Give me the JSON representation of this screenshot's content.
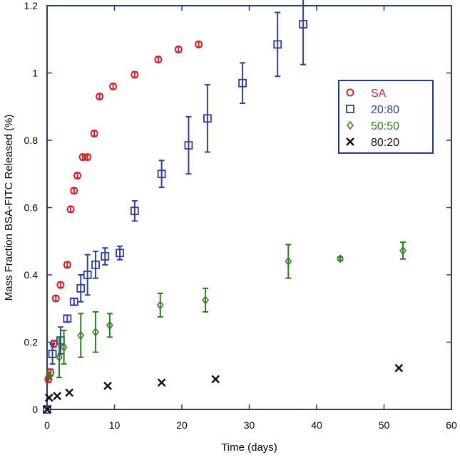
{
  "chart_data": {
    "type": "scatter",
    "title": "",
    "xlabel": "Time (days)",
    "ylabel": "Mass Fraction BSA-FITC Released (%)",
    "xlim": [
      0,
      60
    ],
    "ylim": [
      0,
      1.2
    ],
    "xticks": [
      0,
      10,
      20,
      30,
      40,
      50,
      60
    ],
    "xtick_labels": [
      "0",
      "10",
      "20",
      "30",
      "40",
      "50",
      "60"
    ],
    "yticks": [
      0,
      0.2,
      0.4,
      0.6,
      0.8,
      1.0,
      1.2
    ],
    "ytick_labels": [
      "0",
      "0.2",
      "0.4",
      "0.6",
      "0.8",
      "1",
      "1.2"
    ],
    "grid": false,
    "legend_position": "upper-right",
    "axis_color": "#1f3c88",
    "series": [
      {
        "name": "SA",
        "marker": "circle",
        "color": "#d8202a",
        "points": [
          {
            "x": 0.2,
            "y": 0.09,
            "err": 0.01
          },
          {
            "x": 0.5,
            "y": 0.11,
            "err": 0.01
          },
          {
            "x": 1.0,
            "y": 0.195,
            "err": 0.01
          },
          {
            "x": 1.3,
            "y": 0.33,
            "err": 0.008
          },
          {
            "x": 2.0,
            "y": 0.37,
            "err": 0.008
          },
          {
            "x": 3.0,
            "y": 0.43,
            "err": 0.008
          },
          {
            "x": 3.5,
            "y": 0.595,
            "err": 0.008
          },
          {
            "x": 4.0,
            "y": 0.65,
            "err": 0.008
          },
          {
            "x": 4.5,
            "y": 0.695,
            "err": 0.008
          },
          {
            "x": 5.3,
            "y": 0.75,
            "err": 0.008
          },
          {
            "x": 6.0,
            "y": 0.75,
            "err": 0.008
          },
          {
            "x": 7.0,
            "y": 0.82,
            "err": 0.008
          },
          {
            "x": 7.8,
            "y": 0.93,
            "err": 0.008
          },
          {
            "x": 9.8,
            "y": 0.96,
            "err": 0.008
          },
          {
            "x": 13.0,
            "y": 0.995,
            "err": 0.008
          },
          {
            "x": 16.5,
            "y": 1.04,
            "err": 0.008
          },
          {
            "x": 19.5,
            "y": 1.07,
            "err": 0.008
          },
          {
            "x": 22.5,
            "y": 1.085,
            "err": 0.008
          }
        ]
      },
      {
        "name": "20:80",
        "marker": "square",
        "color": "#2f3f9e",
        "points": [
          {
            "x": 0.0,
            "y": 0.0,
            "err": 0.0
          },
          {
            "x": 0.8,
            "y": 0.165,
            "err": 0.03
          },
          {
            "x": 2.0,
            "y": 0.205,
            "err": 0.04
          },
          {
            "x": 3.0,
            "y": 0.27,
            "err": 0.01
          },
          {
            "x": 4.0,
            "y": 0.32,
            "err": 0.01
          },
          {
            "x": 5.0,
            "y": 0.36,
            "err": 0.04
          },
          {
            "x": 6.0,
            "y": 0.4,
            "err": 0.06
          },
          {
            "x": 7.2,
            "y": 0.43,
            "err": 0.04
          },
          {
            "x": 8.6,
            "y": 0.455,
            "err": 0.025
          },
          {
            "x": 10.8,
            "y": 0.465,
            "err": 0.02
          },
          {
            "x": 13.0,
            "y": 0.59,
            "err": 0.03
          },
          {
            "x": 17.0,
            "y": 0.7,
            "err": 0.04
          },
          {
            "x": 21.0,
            "y": 0.785,
            "err": 0.085
          },
          {
            "x": 23.8,
            "y": 0.865,
            "err": 0.1
          },
          {
            "x": 29.0,
            "y": 0.97,
            "err": 0.06
          },
          {
            "x": 34.2,
            "y": 1.085,
            "err": 0.095
          },
          {
            "x": 38.0,
            "y": 1.145,
            "err": 0.12
          }
        ]
      },
      {
        "name": "50:50",
        "marker": "diamond",
        "color": "#2e7d1e",
        "points": [
          {
            "x": 0.3,
            "y": 0.1,
            "err": 0.01
          },
          {
            "x": 1.8,
            "y": 0.155,
            "err": 0.06
          },
          {
            "x": 2.5,
            "y": 0.185,
            "err": 0.05
          },
          {
            "x": 5.0,
            "y": 0.22,
            "err": 0.065
          },
          {
            "x": 7.2,
            "y": 0.23,
            "err": 0.06
          },
          {
            "x": 9.3,
            "y": 0.25,
            "err": 0.035
          },
          {
            "x": 16.8,
            "y": 0.31,
            "err": 0.035
          },
          {
            "x": 23.5,
            "y": 0.325,
            "err": 0.035
          },
          {
            "x": 35.8,
            "y": 0.44,
            "err": 0.05
          },
          {
            "x": 43.5,
            "y": 0.448,
            "err": 0.005
          },
          {
            "x": 52.8,
            "y": 0.472,
            "err": 0.025
          }
        ]
      },
      {
        "name": "80:20",
        "marker": "x",
        "color": "#111111",
        "points": [
          {
            "x": 0.0,
            "y": 0.0
          },
          {
            "x": 0.3,
            "y": 0.035
          },
          {
            "x": 1.5,
            "y": 0.04
          },
          {
            "x": 3.3,
            "y": 0.05
          },
          {
            "x": 9.0,
            "y": 0.07
          },
          {
            "x": 17.0,
            "y": 0.08
          },
          {
            "x": 25.0,
            "y": 0.09
          },
          {
            "x": 52.2,
            "y": 0.123
          }
        ]
      }
    ]
  }
}
